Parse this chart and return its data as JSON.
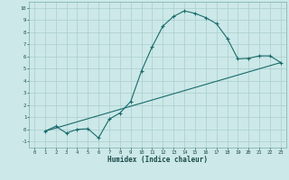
{
  "xlabel": "Humidex (Indice chaleur)",
  "bg_color": "#cce8e8",
  "grid_color": "#aacece",
  "line_color": "#1a6b6b",
  "xlim": [
    -0.5,
    23.5
  ],
  "ylim": [
    -1.5,
    10.5
  ],
  "xticks": [
    0,
    1,
    2,
    3,
    4,
    5,
    6,
    7,
    8,
    9,
    10,
    11,
    12,
    13,
    14,
    15,
    16,
    17,
    18,
    19,
    20,
    21,
    22,
    23
  ],
  "yticks": [
    -1,
    0,
    1,
    2,
    3,
    4,
    5,
    6,
    7,
    8,
    9,
    10
  ],
  "curve1_x": [
    1,
    2,
    3,
    4,
    5,
    6,
    7,
    8,
    9,
    10,
    11,
    12,
    13,
    14,
    15,
    16,
    17,
    18,
    19,
    20,
    21,
    22,
    23
  ],
  "curve1_y": [
    -0.15,
    0.25,
    -0.3,
    0.0,
    0.05,
    -0.7,
    0.85,
    1.35,
    2.3,
    4.8,
    6.8,
    8.5,
    9.3,
    9.75,
    9.55,
    9.2,
    8.7,
    7.5,
    5.8,
    5.85,
    6.05,
    6.05,
    5.5
  ],
  "curve2_x": [
    1,
    23
  ],
  "curve2_y": [
    -0.15,
    5.5
  ]
}
